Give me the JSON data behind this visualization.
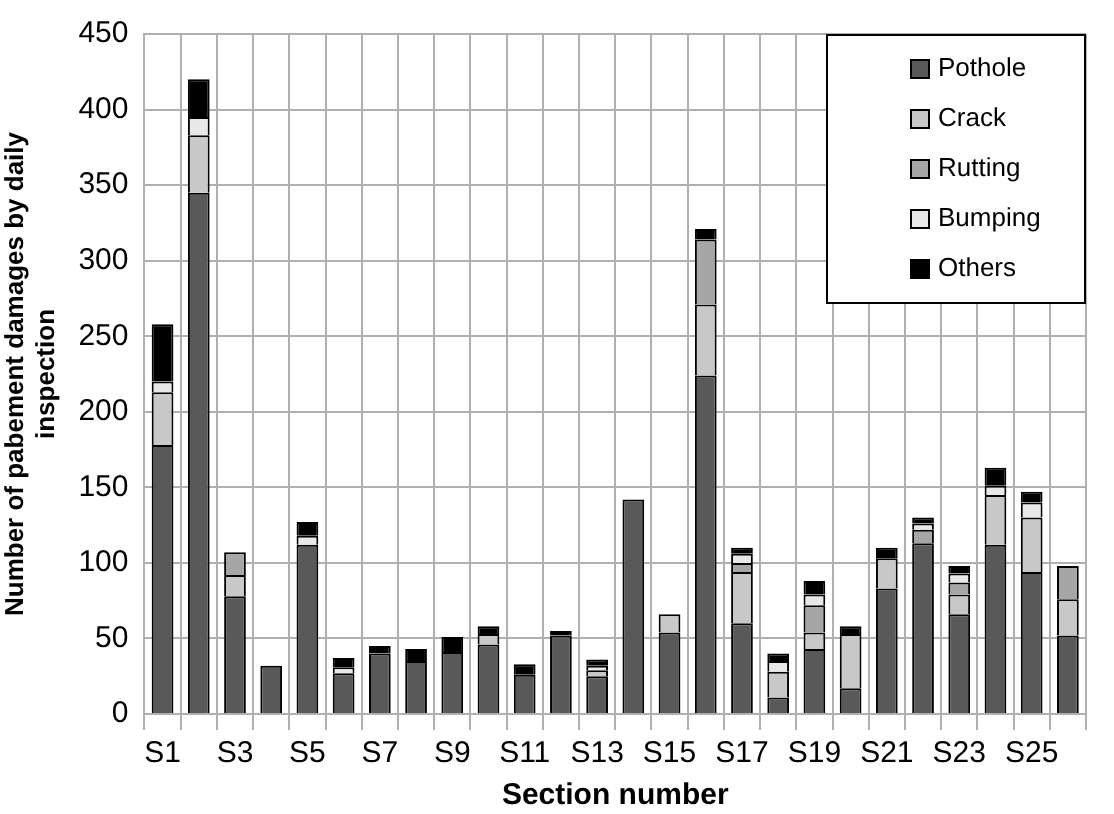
{
  "chart_data": {
    "type": "bar",
    "stacked": true,
    "xlabel": "Section number",
    "ylabel": "Number of pabement damages by daily inspection",
    "categories": [
      "S1",
      null,
      "S3",
      null,
      "S5",
      null,
      "S7",
      null,
      "S9",
      null,
      "S11",
      null,
      "S13",
      null,
      "S15",
      null,
      "S17",
      null,
      "S19",
      null,
      "S21",
      null,
      "S23",
      null,
      "S25",
      null
    ],
    "series": [
      {
        "name": "Pothole",
        "color": "#595959",
        "values": [
          178,
          345,
          78,
          32,
          112,
          27,
          40,
          35,
          41,
          46,
          26,
          52,
          25,
          142,
          54,
          224,
          60,
          11,
          43,
          17,
          83,
          113,
          66,
          112,
          94,
          52
        ]
      },
      {
        "name": "Crack",
        "color": "#c8c8c8",
        "values": [
          35,
          38,
          14,
          null,
          null,
          null,
          null,
          null,
          null,
          7,
          null,
          null,
          4,
          null,
          12,
          47,
          34,
          17,
          11,
          36,
          20,
          null,
          13,
          33,
          36,
          24
        ]
      },
      {
        "name": "Rutting",
        "color": "#a6a6a6",
        "values": [
          null,
          null,
          15,
          null,
          null,
          null,
          null,
          null,
          null,
          null,
          null,
          null,
          null,
          null,
          null,
          43,
          6,
          null,
          18,
          null,
          null,
          9,
          8,
          null,
          null,
          22
        ]
      },
      {
        "name": "Bumping",
        "color": "#e8e8e8",
        "values": [
          7,
          12,
          null,
          null,
          6,
          4,
          null,
          null,
          null,
          null,
          null,
          null,
          3,
          null,
          null,
          null,
          6,
          7,
          7,
          null,
          null,
          4,
          6,
          6,
          10,
          null
        ]
      },
      {
        "name": "Others",
        "color": "#000000",
        "values": [
          38,
          25,
          null,
          null,
          9,
          6,
          5,
          8,
          10,
          5,
          7,
          3,
          4,
          null,
          null,
          7,
          4,
          5,
          9,
          5,
          7,
          4,
          5,
          12,
          7,
          null
        ]
      }
    ],
    "ylim": [
      0,
      450
    ],
    "yticks": [
      0,
      50,
      100,
      150,
      200,
      250,
      300,
      350,
      400,
      450
    ],
    "grid": true,
    "legend": "top right"
  }
}
